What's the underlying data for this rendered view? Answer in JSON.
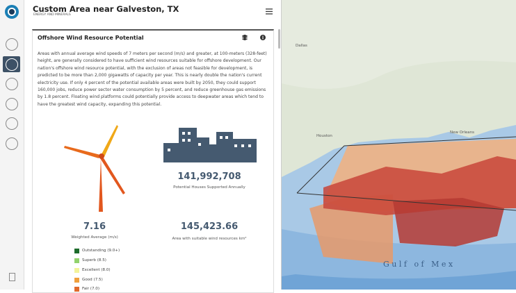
{
  "header": {
    "title": "Custom Area near Galveston, TX",
    "subtitle": "ENERGY AND MINERALS"
  },
  "card": {
    "title": "Offshore Wind Resource Potential",
    "description": "Areas with annual average wind speeds of 7 meters per second (m/s) and greater, at 100-meters (328-feet) height, are generally considered to have sufficient wind resources suitable for offshore development. Our nation's offshore wind resource potential, with the exclusion of areas not feasible for development, is predicted to be more than 2,000 gigawatts of capacity per year. This is nearly double the nation's current electricity use. If only 4 percent of the potential available areas were built by 2050, they could support 160,000 jobs, reduce power sector water consumption by 5 percent, and reduce greenhouse gas emissions by 1.8 percent. Floating wind platforms could potentially provide access to deepwater areas which tend to have the greatest wind capacity, expanding this potential.",
    "stats": [
      {
        "value": "141,992,708",
        "label": "Potential Houses Supported Annually"
      },
      {
        "value": "7.16",
        "label": "Weighted Average (m/s)"
      },
      {
        "value": "145,423.66",
        "label": "Area with suitable wind resources km²"
      }
    ],
    "legend": [
      "Outstanding (9.0+)",
      "Superb (8.5)",
      "Excellent (8.0)",
      "Good (7.5)",
      "Fair (7.0)"
    ]
  },
  "map": {
    "labels": [
      "Dallas",
      "Houston",
      "New Orleans",
      "G u l f   o f   M e x"
    ]
  }
}
